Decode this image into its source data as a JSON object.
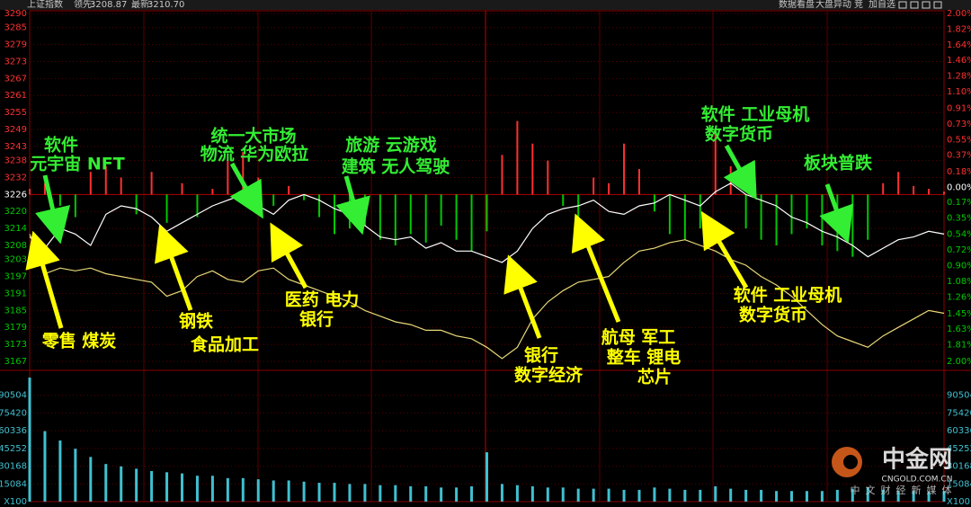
{
  "header": {
    "name": "上证指数",
    "lead_label": "领先:",
    "lead": "3208.87",
    "latest_label": "最新:",
    "latest": "3210.70"
  },
  "toolbar": [
    "数据看盘",
    "大盘异动",
    "竞",
    "加自选"
  ],
  "watermark": {
    "title": "中金网",
    "url": "CNGOLD.COM.CN",
    "slogan": "中文财经新媒体"
  },
  "chart_data": [
    {
      "type": "line",
      "categories": [
        null,
        null,
        null,
        null,
        null,
        null,
        null,
        null,
        null,
        null,
        null,
        null,
        null,
        null,
        null,
        null,
        null,
        null,
        null,
        null,
        null,
        null,
        null,
        null,
        null,
        null,
        null,
        null,
        null,
        null,
        null,
        null,
        null,
        null,
        null,
        null,
        null,
        null,
        null,
        null,
        null,
        null,
        null,
        null,
        null,
        null,
        null,
        null,
        null,
        null,
        null,
        null,
        null,
        null,
        null,
        null,
        null,
        null,
        null,
        null,
        null
      ],
      "ylim": [
        3167,
        3290
      ],
      "yticks": [
        3290,
        3285,
        3279,
        3273,
        3267,
        3261,
        3255,
        3249,
        3243,
        3238,
        3232,
        3226,
        3220,
        3214,
        3208,
        3203,
        3197,
        3191,
        3185,
        3179,
        3173,
        3167
      ],
      "y2lim": [
        -2,
        2
      ],
      "y2ticks": [
        {
          "value": 2.0,
          "label": "2.00%"
        },
        {
          "value": 1.82,
          "label": "1.82%"
        },
        {
          "value": 1.64,
          "label": "1.64%"
        },
        {
          "value": 1.46,
          "label": "1.46%"
        },
        {
          "value": 1.28,
          "label": "1.28%"
        },
        {
          "value": 1.1,
          "label": "1.10%"
        },
        {
          "value": 0.91,
          "label": "0.91%"
        },
        {
          "value": 0.73,
          "label": "0.73%"
        },
        {
          "value": 0.55,
          "label": "0.55%"
        },
        {
          "value": 0.37,
          "label": "0.37%"
        },
        {
          "value": 0.18,
          "label": "0.18%"
        },
        {
          "value": 0.0,
          "label": "0.00%"
        },
        {
          "value": -0.17,
          "label": "0.17%"
        },
        {
          "value": -0.35,
          "label": "0.35%"
        },
        {
          "value": -0.54,
          "label": "0.54%"
        },
        {
          "value": -0.72,
          "label": "0.72%"
        },
        {
          "value": -0.9,
          "label": "0.90%"
        },
        {
          "value": -1.08,
          "label": "1.08%"
        },
        {
          "value": -1.26,
          "label": "1.26%"
        },
        {
          "value": -1.45,
          "label": "1.45%"
        },
        {
          "value": -1.63,
          "label": "1.63%"
        },
        {
          "value": -1.81,
          "label": "1.81%"
        },
        {
          "value": -2.0,
          "label": "2.00%"
        }
      ],
      "baseline": 3226,
      "up_color": "#ff3030",
      "down_color": "#00c800",
      "flat_color": "#ffffff",
      "series": [
        {
          "color": "#ffffff",
          "values": [
            3211,
            3207,
            3214,
            3212,
            3208,
            3219,
            3222,
            3221,
            3218,
            3213,
            3216,
            3219,
            3222,
            3224,
            3226,
            3222,
            3219,
            3224,
            3226,
            3224,
            3221,
            3219,
            3215,
            3211,
            3210,
            3211,
            3207,
            3209,
            3206,
            3206,
            3204,
            3202,
            3206,
            3214,
            3219,
            3221,
            3222,
            3224,
            3220,
            3219,
            3222,
            3223,
            3226,
            3224,
            3222,
            3227,
            3230,
            3226,
            3224,
            3222,
            3218,
            3216,
            3213,
            3211,
            3208,
            3204,
            3207,
            3210,
            3211,
            3213,
            3212
          ]
        },
        {
          "color": "#e8d878",
          "values": [
            3212,
            3198,
            3200,
            3199,
            3200,
            3198,
            3197,
            3196,
            3195,
            3190,
            3192,
            3197,
            3199,
            3196,
            3195,
            3199,
            3200,
            3196,
            3194,
            3192,
            3190,
            3188,
            3185,
            3183,
            3181,
            3180,
            3178,
            3178,
            3176,
            3175,
            3172,
            3168,
            3172,
            3182,
            3188,
            3192,
            3195,
            3196,
            3197,
            3202,
            3206,
            3207,
            3209,
            3210,
            3208,
            3206,
            3203,
            3201,
            3197,
            3194,
            3190,
            3185,
            3180,
            3176,
            3174,
            3172,
            3176,
            3179,
            3182,
            3185,
            3184
          ]
        }
      ],
      "bars": [
        3228,
        3230,
        3222,
        3218,
        3234,
        3236,
        3232,
        3219,
        3234,
        3216,
        3230,
        3218,
        3228,
        3238,
        3241,
        3232,
        3222,
        3229,
        3224,
        3218,
        3212,
        3214,
        3215,
        3210,
        3208,
        3212,
        3209,
        3215,
        3210,
        3206,
        3213,
        3240,
        3252,
        3244,
        3238,
        3222,
        3218,
        3232,
        3230,
        3244,
        3235,
        3220,
        3212,
        3210,
        3214,
        3248,
        3236,
        3214,
        3210,
        3208,
        3212,
        3214,
        3208,
        3206,
        3204,
        3210,
        3230,
        3234,
        3229,
        3228,
        3227
      ],
      "grid": true,
      "annotations": [
        {
          "text": "软件",
          "color": "#33ee33"
        },
        {
          "text": "元宇宙 NFT",
          "color": "#33ee33"
        },
        {
          "text": "统一大市场",
          "color": "#33ee33"
        },
        {
          "text": "物流 华为欧拉",
          "color": "#33ee33"
        },
        {
          "text": "旅游 云游戏",
          "color": "#33ee33"
        },
        {
          "text": "建筑 无人驾驶",
          "color": "#33ee33"
        },
        {
          "text": "软件 工业母机",
          "color": "#33ee33"
        },
        {
          "text": "数字货币",
          "color": "#33ee33"
        },
        {
          "text": "板块普跌",
          "color": "#33ee33"
        },
        {
          "text": "零售 煤炭",
          "color": "#ffff00"
        },
        {
          "text": "钢铁",
          "color": "#ffff00"
        },
        {
          "text": "食品加工",
          "color": "#ffff00"
        },
        {
          "text": "医药 电力",
          "color": "#ffff00"
        },
        {
          "text": "银行",
          "color": "#ffff00"
        },
        {
          "text": "银行",
          "color": "#ffff00"
        },
        {
          "text": "数字经济",
          "color": "#ffff00"
        },
        {
          "text": "航母 军工",
          "color": "#ffff00"
        },
        {
          "text": "整车 锂电",
          "color": "#ffff00"
        },
        {
          "text": "芯片",
          "color": "#ffff00"
        },
        {
          "text": "软件 工业母机",
          "color": "#ffff00"
        },
        {
          "text": "数字货币",
          "color": "#ffff00"
        }
      ]
    },
    {
      "type": "bar",
      "categories": [
        null,
        null,
        null,
        null,
        null,
        null,
        null,
        null,
        null,
        null,
        null,
        null,
        null,
        null,
        null,
        null,
        null,
        null,
        null,
        null,
        null,
        null,
        null,
        null,
        null,
        null,
        null,
        null,
        null,
        null,
        null,
        null,
        null,
        null,
        null,
        null,
        null,
        null,
        null,
        null,
        null,
        null,
        null,
        null,
        null,
        null,
        null,
        null,
        null,
        null,
        null,
        null,
        null,
        null,
        null,
        null,
        null,
        null,
        null,
        null,
        null
      ],
      "ylim": [
        0,
        105588
      ],
      "yticks": [
        90504,
        75420,
        60336,
        45252,
        30168,
        15084
      ],
      "unit_label": "X100",
      "color": "#40c0d0",
      "values": [
        105588,
        60000,
        52000,
        45000,
        38000,
        32000,
        30000,
        28000,
        26000,
        25000,
        24000,
        22000,
        22000,
        20000,
        20000,
        19000,
        18000,
        18000,
        17000,
        16000,
        16000,
        15000,
        15000,
        14000,
        14000,
        13000,
        13000,
        12000,
        12000,
        13000,
        42000,
        15000,
        14000,
        13000,
        12000,
        12000,
        11000,
        11000,
        11000,
        10000,
        10000,
        12000,
        11000,
        10000,
        10000,
        13000,
        11000,
        10000,
        10000,
        9000,
        9000,
        9000,
        9000,
        10000,
        11000,
        12000,
        10000,
        9000,
        9000,
        8500,
        9000
      ]
    }
  ]
}
